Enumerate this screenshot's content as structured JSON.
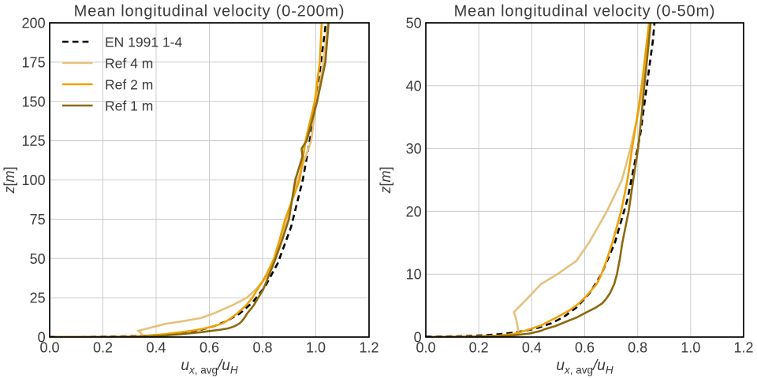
{
  "figure": {
    "background": "#ffffff",
    "text_color": "#3a3a3a",
    "grid_color": "#cccccc",
    "spine_color": "#000000"
  },
  "chart_data": {
    "type": "line",
    "xlabel": {
      "var1": "u",
      "sub1_italic": "x",
      "sub1_rest": ", avg",
      "divider": "/",
      "var2": "u",
      "sub2_italic": "H"
    },
    "ylabel": {
      "var": "z",
      "open_bracket": "[",
      "unit_italic": "m",
      "close_bracket": "]"
    },
    "legend": {
      "position": "upper left",
      "frame": false
    },
    "series": [
      {
        "name": "EN 1991 1-4",
        "color": "#000000",
        "dash": [
          7.7,
          5.1
        ],
        "width": 2.6,
        "points_uz": [
          [
            0.0,
            0.0496
          ],
          [
            0.043,
            0.07
          ],
          [
            0.088,
            0.1
          ],
          [
            0.138,
            0.15
          ],
          [
            0.186,
            0.22
          ],
          [
            0.233,
            0.32
          ],
          [
            0.281,
            0.47
          ],
          [
            0.331,
            0.7
          ],
          [
            0.376,
            1.0
          ],
          [
            0.426,
            1.5
          ],
          [
            0.474,
            2.2
          ],
          [
            0.521,
            3.2
          ],
          [
            0.569,
            4.7
          ],
          [
            0.619,
            7.0
          ],
          [
            0.663,
            10
          ],
          [
            0.714,
            15
          ],
          [
            0.762,
            22
          ],
          [
            0.809,
            32
          ],
          [
            0.857,
            47
          ],
          [
            0.907,
            70
          ],
          [
            0.951,
            100
          ],
          [
            0.993,
            140
          ],
          [
            1.038,
            200
          ]
        ]
      },
      {
        "name": "Ref 4 m",
        "color": "#e6c17c",
        "dash": null,
        "width": 2.6,
        "points_uz": [
          [
            0.02,
            0.01
          ],
          [
            0.15,
            0.03
          ],
          [
            0.27,
            0.07
          ],
          [
            0.325,
            0.18
          ],
          [
            0.345,
            0.42
          ],
          [
            0.3495,
            0.71
          ],
          [
            0.3495,
            1.0
          ],
          [
            0.341,
            2.9
          ],
          [
            0.3326,
            3.98
          ],
          [
            0.357,
            5.0
          ],
          [
            0.387,
            6.3
          ],
          [
            0.434,
            8.4
          ],
          [
            0.4965,
            10.0
          ],
          [
            0.5676,
            12.08
          ],
          [
            0.616,
            15
          ],
          [
            0.6837,
            20
          ],
          [
            0.7406,
            25
          ],
          [
            0.7726,
            30
          ],
          [
            0.799,
            35
          ],
          [
            0.8235,
            40
          ],
          [
            0.847,
            50
          ],
          [
            0.868,
            62
          ],
          [
            0.8905,
            75
          ],
          [
            0.932,
            100
          ],
          [
            0.9827,
            125
          ],
          [
            1.002,
            150
          ],
          [
            1.0295,
            175
          ],
          [
            1.045,
            200
          ]
        ]
      },
      {
        "name": "Ref 2 m",
        "color": "#eea102",
        "dash": null,
        "width": 2.6,
        "points_uz": [
          [
            0.02,
            0.01
          ],
          [
            0.18,
            0.08
          ],
          [
            0.28,
            0.25
          ],
          [
            0.34,
            0.54
          ],
          [
            0.386,
            1.16
          ],
          [
            0.435,
            1.83
          ],
          [
            0.46,
            2.4
          ],
          [
            0.5,
            3.26
          ],
          [
            0.545,
            4.3
          ],
          [
            0.579,
            5.39
          ],
          [
            0.607,
            6.54
          ],
          [
            0.648,
            8.6
          ],
          [
            0.663,
            10
          ],
          [
            0.681,
            12
          ],
          [
            0.7045,
            15
          ],
          [
            0.7374,
            20
          ],
          [
            0.7616,
            25
          ],
          [
            0.779,
            30
          ],
          [
            0.798,
            35
          ],
          [
            0.8153,
            40
          ],
          [
            0.843,
            50
          ],
          [
            0.864,
            62
          ],
          [
            0.885,
            75
          ],
          [
            0.939,
            100
          ],
          [
            0.9614,
            125
          ],
          [
            0.996,
            150
          ],
          [
            1.015,
            175
          ],
          [
            1.022,
            200
          ]
        ]
      },
      {
        "name": "Ref 1 m",
        "color": "#8c690e",
        "dash": null,
        "width": 2.6,
        "points_uz": [
          [
            0.02,
            0.005
          ],
          [
            0.16,
            0.04
          ],
          [
            0.27,
            0.12
          ],
          [
            0.3335,
            0.27
          ],
          [
            0.39,
            0.55
          ],
          [
            0.4348,
            0.98
          ],
          [
            0.4467,
            1.22
          ],
          [
            0.4886,
            1.74
          ],
          [
            0.5304,
            2.46
          ],
          [
            0.5723,
            3.16
          ],
          [
            0.603,
            3.86
          ],
          [
            0.642,
            4.69
          ],
          [
            0.667,
            5.39
          ],
          [
            0.6815,
            6.1
          ],
          [
            0.696,
            7.0
          ],
          [
            0.712,
            8.5
          ],
          [
            0.7216,
            10
          ],
          [
            0.733,
            12.5
          ],
          [
            0.742,
            15
          ],
          [
            0.766,
            20
          ],
          [
            0.7833,
            25
          ],
          [
            0.8016,
            30
          ],
          [
            0.814,
            35
          ],
          [
            0.825,
            40
          ],
          [
            0.8375,
            45
          ],
          [
            0.849,
            50
          ],
          [
            0.874,
            62
          ],
          [
            0.899,
            75
          ],
          [
            0.9227,
            100
          ],
          [
            0.95,
            115
          ],
          [
            0.9467,
            120
          ],
          [
            0.966,
            125
          ],
          [
            1.005,
            150
          ],
          [
            1.036,
            175
          ],
          [
            1.048,
            200
          ]
        ]
      }
    ],
    "panels": [
      {
        "title": "Mean longitudinal velocity (0-200m)",
        "xlim": [
          0,
          1.2
        ],
        "ylim": [
          0,
          200
        ],
        "xtick_labels": [
          "0.0",
          "0.2",
          "0.4",
          "0.6",
          "0.8",
          "1.0",
          "1.2"
        ],
        "xtick_values": [
          0,
          0.2,
          0.4,
          0.6,
          0.8,
          1.0,
          1.2
        ],
        "ytick_labels": [
          "0",
          "25",
          "50",
          "75",
          "100",
          "125",
          "150",
          "175",
          "200"
        ],
        "ytick_values": [
          0,
          25,
          50,
          75,
          100,
          125,
          150,
          175,
          200
        ],
        "grid": true,
        "show_legend": true
      },
      {
        "title": "Mean longitudinal velocity (0-50m)",
        "xlim": [
          0,
          1.2
        ],
        "ylim": [
          0,
          50
        ],
        "xtick_labels": [
          "0.0",
          "0.2",
          "0.4",
          "0.6",
          "0.8",
          "1.0",
          "1.2"
        ],
        "xtick_values": [
          0,
          0.2,
          0.4,
          0.6,
          0.8,
          1.0,
          1.2
        ],
        "ytick_labels": [
          "0",
          "10",
          "20",
          "30",
          "40",
          "50"
        ],
        "ytick_values": [
          0,
          10,
          20,
          30,
          40,
          50
        ],
        "grid": true,
        "show_legend": false
      }
    ]
  }
}
